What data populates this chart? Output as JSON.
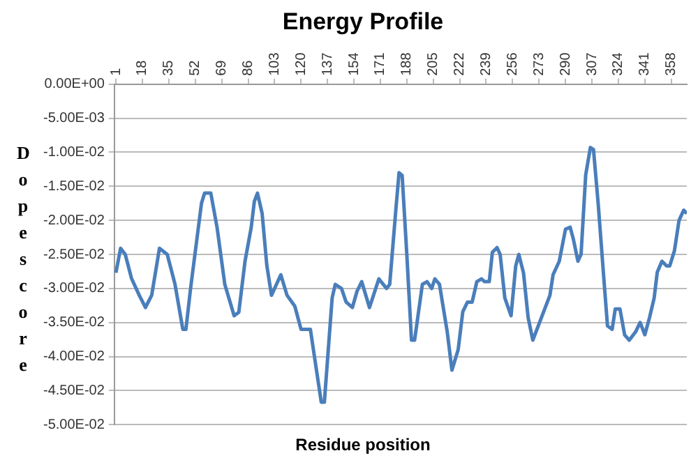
{
  "chart_data": {
    "type": "line",
    "title": "Energy Profile",
    "xlabel": "Residue position",
    "ylabel": "Dope score",
    "xlim": [
      0,
      368
    ],
    "xticks": [
      1,
      18,
      35,
      52,
      69,
      86,
      103,
      120,
      137,
      154,
      171,
      188,
      205,
      222,
      239,
      256,
      273,
      290,
      307,
      324,
      341,
      358
    ],
    "ylim": [
      -0.05,
      0
    ],
    "yticks": [
      {
        "value": 0,
        "label": "0.00E+00"
      },
      {
        "value": -0.005,
        "label": "-5.00E-03"
      },
      {
        "value": -0.01,
        "label": "-1.00E-02"
      },
      {
        "value": -0.015,
        "label": "-1.50E-02"
      },
      {
        "value": -0.02,
        "label": "-2.00E-02"
      },
      {
        "value": -0.025,
        "label": "-2.50E-02"
      },
      {
        "value": -0.03,
        "label": "-3.00E-02"
      },
      {
        "value": -0.035,
        "label": "-3.50E-02"
      },
      {
        "value": -0.04,
        "label": "-4.00E-02"
      },
      {
        "value": -0.045,
        "label": "-4.50E-02"
      },
      {
        "value": -0.05,
        "label": "-5.00E-02"
      }
    ],
    "grid": "y",
    "legend": false,
    "marker": "none",
    "line_style": "solid",
    "series": [
      {
        "color": "#4a7ebb",
        "x": [
          1,
          4,
          7,
          11,
          16,
          20,
          24,
          29,
          34,
          39,
          44,
          46,
          49,
          56,
          58,
          62,
          66,
          71,
          77,
          80,
          84,
          88,
          90,
          92,
          95,
          98,
          101,
          107,
          111,
          116,
          120,
          126,
          133,
          135,
          140,
          142,
          146,
          149,
          153,
          156,
          159,
          164,
          170,
          175,
          177,
          181,
          183,
          185,
          188,
          191,
          193,
          198,
          201,
          204,
          206,
          209,
          214,
          217,
          221,
          224,
          227,
          230,
          233,
          236,
          238,
          241,
          243,
          246,
          248,
          251,
          255,
          258,
          260,
          263,
          266,
          269,
          275,
          280,
          282,
          286,
          290,
          293,
          295,
          298,
          300,
          303,
          306,
          308,
          311,
          315,
          317,
          320,
          322,
          325,
          328,
          331,
          335,
          338,
          341,
          344,
          347,
          349,
          352,
          355,
          357,
          360,
          363,
          366,
          368
        ],
        "values": [
          -0.0277,
          -0.0241,
          -0.025,
          -0.0285,
          -0.031,
          -0.0328,
          -0.031,
          -0.0241,
          -0.025,
          -0.0294,
          -0.036,
          -0.036,
          -0.03,
          -0.0175,
          -0.016,
          -0.016,
          -0.021,
          -0.0294,
          -0.034,
          -0.0335,
          -0.026,
          -0.021,
          -0.0172,
          -0.016,
          -0.019,
          -0.0266,
          -0.031,
          -0.028,
          -0.031,
          -0.0326,
          -0.036,
          -0.036,
          -0.0467,
          -0.0467,
          -0.0314,
          -0.0294,
          -0.03,
          -0.032,
          -0.0328,
          -0.0304,
          -0.029,
          -0.0328,
          -0.0286,
          -0.03,
          -0.0294,
          -0.0183,
          -0.013,
          -0.0134,
          -0.025,
          -0.0376,
          -0.0376,
          -0.0294,
          -0.029,
          -0.03,
          -0.0286,
          -0.0294,
          -0.0364,
          -0.042,
          -0.039,
          -0.0334,
          -0.032,
          -0.032,
          -0.029,
          -0.0286,
          -0.029,
          -0.029,
          -0.0247,
          -0.024,
          -0.025,
          -0.0314,
          -0.034,
          -0.0267,
          -0.025,
          -0.0277,
          -0.0343,
          -0.0376,
          -0.034,
          -0.031,
          -0.028,
          -0.026,
          -0.0213,
          -0.021,
          -0.0227,
          -0.026,
          -0.025,
          -0.0133,
          -0.0093,
          -0.0096,
          -0.0175,
          -0.0296,
          -0.0355,
          -0.036,
          -0.033,
          -0.033,
          -0.0368,
          -0.0376,
          -0.0364,
          -0.035,
          -0.0368,
          -0.0343,
          -0.0314,
          -0.0276,
          -0.026,
          -0.0267,
          -0.0267,
          -0.0245,
          -0.02,
          -0.0185,
          -0.019
        ]
      }
    ]
  }
}
